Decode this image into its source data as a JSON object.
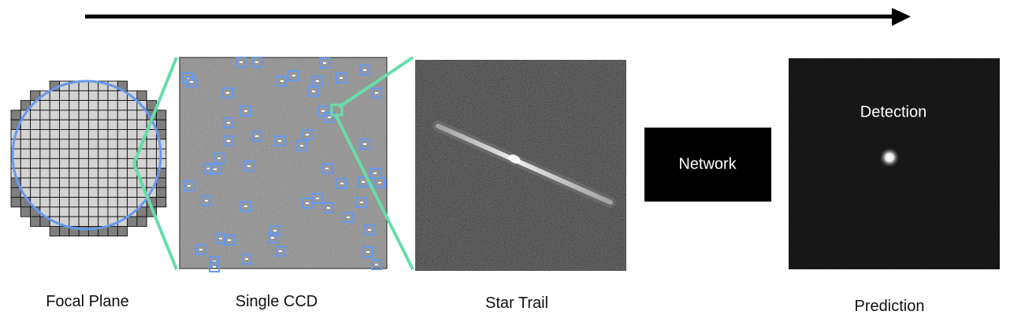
{
  "captions": {
    "focal_plane": "Focal Plane",
    "single_ccd": "Single CCD",
    "star_trail": "Star Trail",
    "prediction": "Prediction"
  },
  "network": {
    "label": "Network"
  },
  "prediction_panel": {
    "label": "Detection"
  },
  "colors": {
    "arrow": "#000000",
    "chip_fill": "#d3d3d3",
    "chip_dark": "#7f7f7f",
    "focal_circle": "#6699ee",
    "zoom_lines": "#66ddaa",
    "detection_boxes": "#6699ee",
    "panel_bg": "#000000"
  }
}
